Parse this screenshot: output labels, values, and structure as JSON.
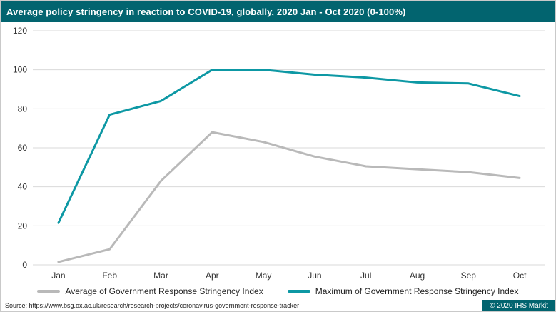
{
  "header": {
    "title": "Average policy stringency in reaction to COVID-19, globally, 2020 Jan - Oct 2020 (0-100%)"
  },
  "footer": {
    "source": "Source: https://www.bsg.ox.ac.uk/research/research-projects/coronavirus-government-response-tracker",
    "copyright": "© 2020 IHS Markit"
  },
  "colors": {
    "header_bg": "#02646f",
    "copyright_bg": "#02646f",
    "max_line": "#0d98a4",
    "avg_line": "#b9b9b9",
    "grid": "#d9d9d9",
    "tick_text": "#333333"
  },
  "chart_data": {
    "type": "line",
    "title": "Average policy stringency in reaction to COVID-19, globally, 2020 Jan - Oct 2020 (0-100%)",
    "categories": [
      "Jan",
      "Feb",
      "Mar",
      "Apr",
      "May",
      "Jun",
      "Jul",
      "Aug",
      "Sep",
      "Oct"
    ],
    "series": [
      {
        "name": "Average of Government Response Stringency Index",
        "color": "#b9b9b9",
        "values": [
          1.5,
          8,
          43,
          68,
          63,
          55.5,
          50.5,
          49,
          47.5,
          44.5
        ]
      },
      {
        "name": "Maximum of Government Response Stringency Index",
        "color": "#0d98a4",
        "values": [
          21.5,
          77,
          84,
          100,
          100,
          97.5,
          96,
          93.5,
          93,
          86.5
        ]
      }
    ],
    "xlabel": "",
    "ylabel": "",
    "ylim": [
      0,
      120
    ],
    "ytick_step": 20,
    "grid": true,
    "legend_position": "bottom"
  }
}
